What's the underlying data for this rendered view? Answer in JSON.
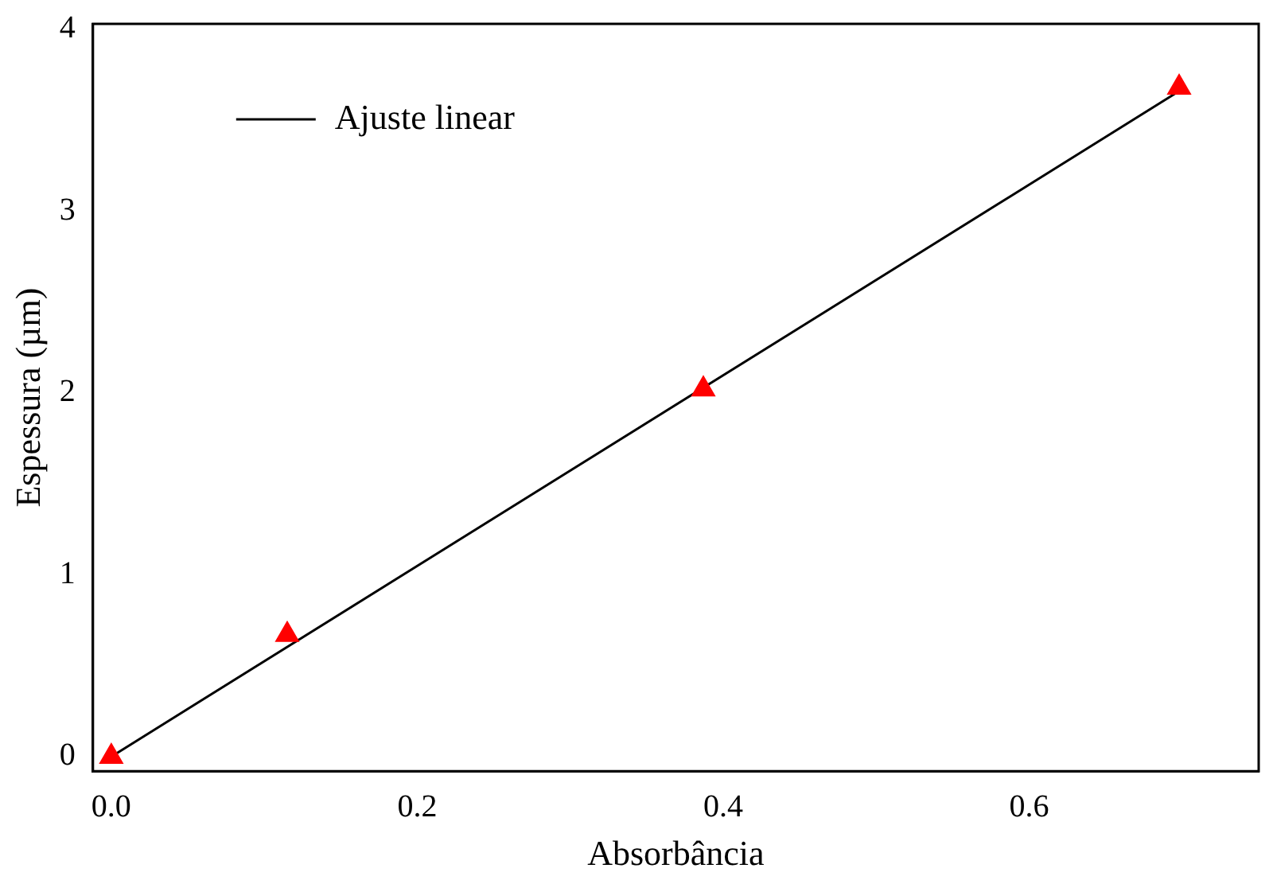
{
  "chart_data": {
    "type": "scatter",
    "xlabel": "Absorbância",
    "ylabel": "Espessura (µm)",
    "xlim": [
      -0.012,
      0.75
    ],
    "ylim": [
      -0.08,
      4.03
    ],
    "xticks": [
      {
        "value": 0,
        "label": "0.0"
      },
      0.2,
      0.4,
      0.6
    ],
    "yticks": [
      0,
      1,
      2,
      3,
      4
    ],
    "grid": false,
    "legend": "top left",
    "series": [
      {
        "type": "line",
        "name": "Ajuste linear",
        "color": "#000000",
        "x": [
          0,
          0.698
        ],
        "values": [
          0,
          3.66
        ],
        "marker": "none"
      },
      {
        "marker": "triangle",
        "color": "#ff0000",
        "x": [
          0,
          0.115,
          0.387,
          0.698
        ],
        "values": [
          0,
          0.67,
          2.02,
          3.68
        ]
      }
    ]
  }
}
